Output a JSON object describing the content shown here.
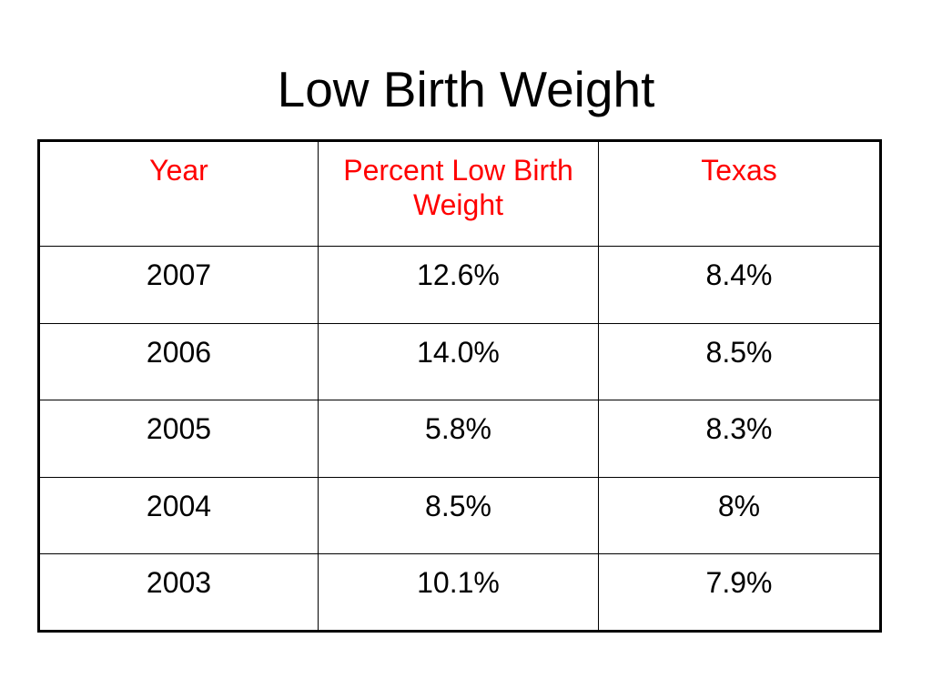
{
  "slide": {
    "title": "Low Birth Weight"
  },
  "colors": {
    "header_text": "#ff0000",
    "body_text": "#000000",
    "border": "#000000",
    "background": "#ffffff"
  },
  "table": {
    "headers": [
      "Year",
      "Percent Low Birth Weight",
      "Texas"
    ],
    "rows": [
      [
        "2007",
        "12.6%",
        "8.4%"
      ],
      [
        "2006",
        "14.0%",
        "8.5%"
      ],
      [
        "2005",
        "5.8%",
        "8.3%"
      ],
      [
        "2004",
        "8.5%",
        "8%"
      ],
      [
        "2003",
        "10.1%",
        "7.9%"
      ]
    ]
  }
}
